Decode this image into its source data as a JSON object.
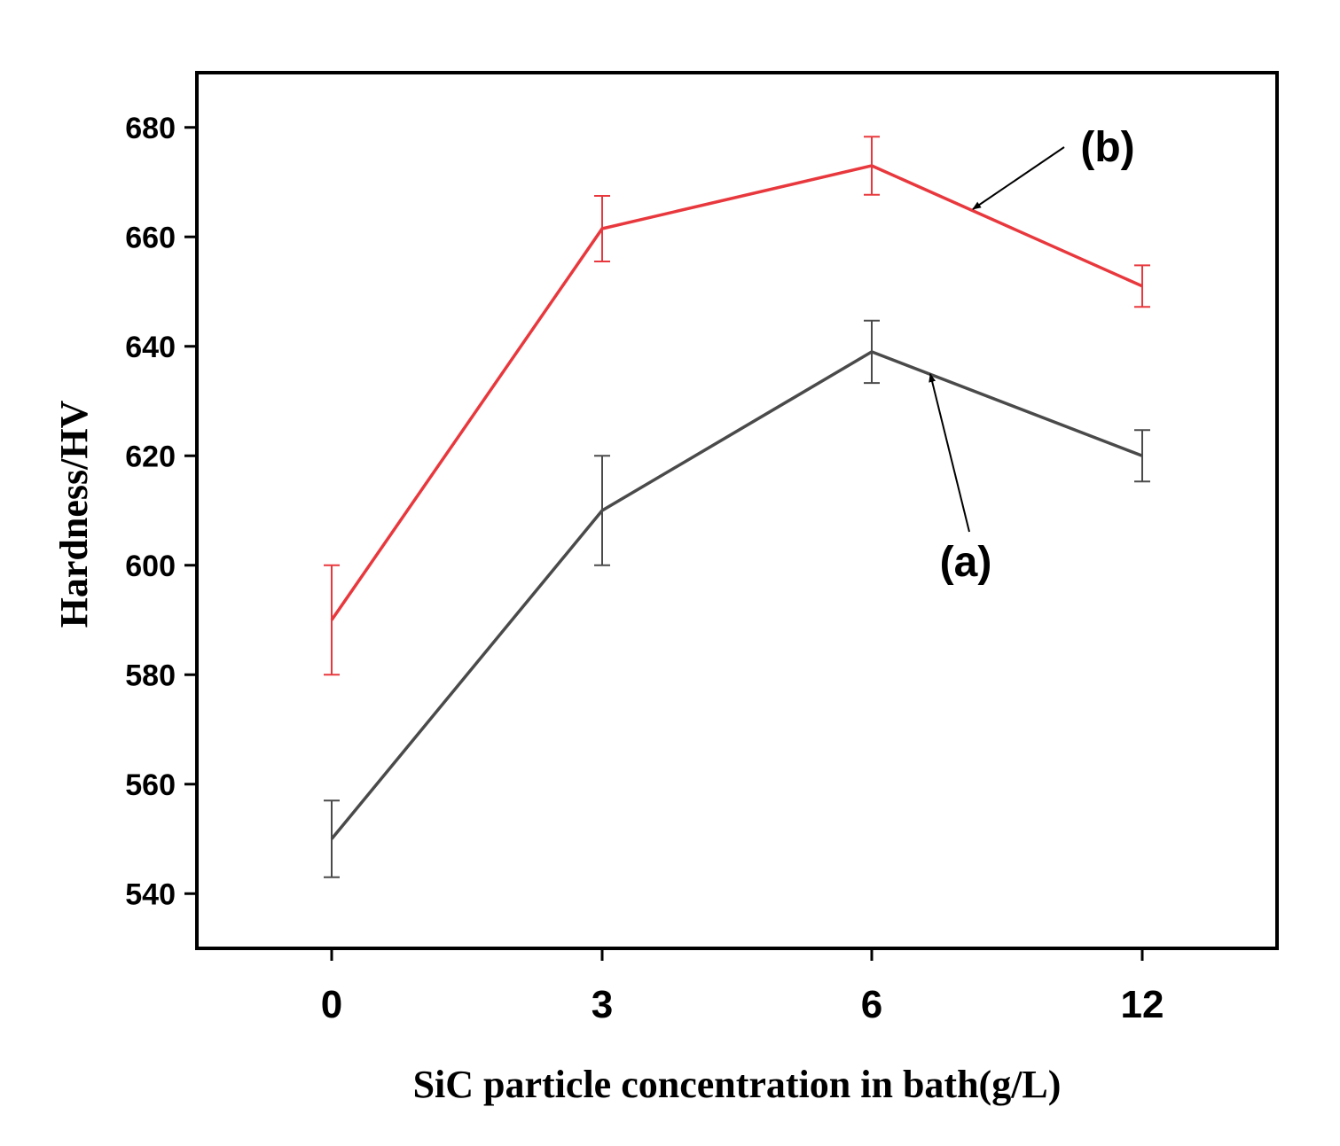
{
  "chart_data": {
    "type": "line",
    "title": "",
    "xlabel": "SiC particle concentration in bath(g/L)",
    "ylabel": "Hardness/HV",
    "categories": [
      "0",
      "3",
      "6",
      "12"
    ],
    "ylim": [
      530,
      690
    ],
    "yticks": [
      540,
      560,
      580,
      600,
      620,
      640,
      660,
      680
    ],
    "grid": false,
    "series": [
      {
        "name": "(a)",
        "color": "#4a4a4a",
        "values": [
          550,
          610,
          639,
          620
        ],
        "errors": [
          7,
          10,
          5.7,
          4.7
        ]
      },
      {
        "name": "(b)",
        "color": "#e8383d",
        "values": [
          590,
          661.5,
          673,
          651
        ],
        "errors": [
          10,
          6,
          5.3,
          3.8
        ]
      }
    ],
    "annotations": [
      {
        "label": "(a)",
        "points_to_series": "(a)"
      },
      {
        "label": "(b)",
        "points_to_series": "(b)"
      }
    ]
  }
}
